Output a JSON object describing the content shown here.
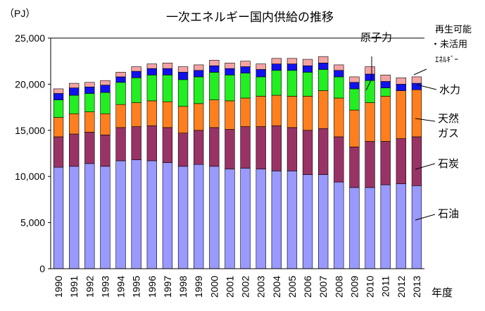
{
  "chart_data": {
    "type": "bar",
    "stacked": true,
    "title": "一次エネルギー国内供給の推移",
    "ylabel": "（PJ）",
    "xlabel": "年度",
    "ylim": [
      0,
      25000
    ],
    "yticks": [
      0,
      5000,
      10000,
      15000,
      20000,
      25000
    ],
    "ytick_labels": [
      "0",
      "5,000",
      "10,000",
      "15,000",
      "20,000",
      "25,000"
    ],
    "grid": false,
    "categories": [
      "1990",
      "1991",
      "1992",
      "1993",
      "1994",
      "1995",
      "1996",
      "1997",
      "1998",
      "1999",
      "2000",
      "2001",
      "2002",
      "2003",
      "2004",
      "2005",
      "2006",
      "2007",
      "2008",
      "2009",
      "2010",
      "2011",
      "2012",
      "2013"
    ],
    "series": [
      {
        "name": "石油",
        "color": "#9999ff",
        "values": [
          11000,
          11100,
          11400,
          11100,
          11700,
          11800,
          11700,
          11500,
          11100,
          11300,
          11100,
          10800,
          10900,
          10800,
          10600,
          10600,
          10200,
          10200,
          9400,
          8800,
          8800,
          9100,
          9200,
          9000
        ]
      },
      {
        "name": "石炭",
        "color": "#993366",
        "values": [
          3300,
          3500,
          3400,
          3400,
          3600,
          3600,
          3800,
          3800,
          3600,
          3700,
          4200,
          4300,
          4500,
          4600,
          4900,
          4700,
          4800,
          5000,
          4900,
          4400,
          5000,
          4700,
          4900,
          5300
        ]
      },
      {
        "name": "天然ガス",
        "color": "#ff7f1e",
        "values": [
          2100,
          2200,
          2200,
          2300,
          2500,
          2600,
          2700,
          2800,
          2900,
          2900,
          3000,
          3100,
          3100,
          3300,
          3300,
          3400,
          3700,
          4100,
          4200,
          4000,
          4200,
          4900,
          5200,
          5100
        ]
      },
      {
        "name": "原子力",
        "color": "#22ee22",
        "values": [
          1900,
          2000,
          2000,
          2300,
          2400,
          2700,
          2800,
          2900,
          2900,
          2900,
          3000,
          2800,
          2700,
          2100,
          2700,
          2800,
          2600,
          2300,
          2300,
          2300,
          2400,
          900,
          0,
          0
        ]
      },
      {
        "name": "水力",
        "color": "#1111ee",
        "values": [
          700,
          800,
          700,
          800,
          600,
          700,
          700,
          700,
          800,
          700,
          700,
          700,
          700,
          800,
          700,
          700,
          700,
          700,
          700,
          700,
          700,
          700,
          700,
          700
        ]
      },
      {
        "name": "再生可能・未活用エネルギー",
        "color": "#f4a3a3",
        "values": [
          500,
          500,
          500,
          500,
          500,
          500,
          500,
          600,
          600,
          600,
          600,
          600,
          600,
          600,
          600,
          600,
          700,
          700,
          600,
          600,
          800,
          700,
          700,
          700
        ]
      }
    ],
    "annotations": [
      {
        "text": "原子力",
        "target": "原子力"
      },
      {
        "text": "再生可能",
        "target": "再生可能・未活用エネルギー"
      },
      {
        "text": "・未活用",
        "target": "再生可能・未活用エネルギー"
      },
      {
        "text": "ｴﾈﾙｷﾞｰ",
        "target": "再生可能・未活用エネルギー"
      },
      {
        "text": "水力",
        "target": "水力"
      },
      {
        "text": "天然",
        "target": "天然ガス"
      },
      {
        "text": "ガス",
        "target": "天然ガス"
      },
      {
        "text": "石炭",
        "target": "石炭"
      },
      {
        "text": "石油",
        "target": "石油"
      }
    ]
  }
}
